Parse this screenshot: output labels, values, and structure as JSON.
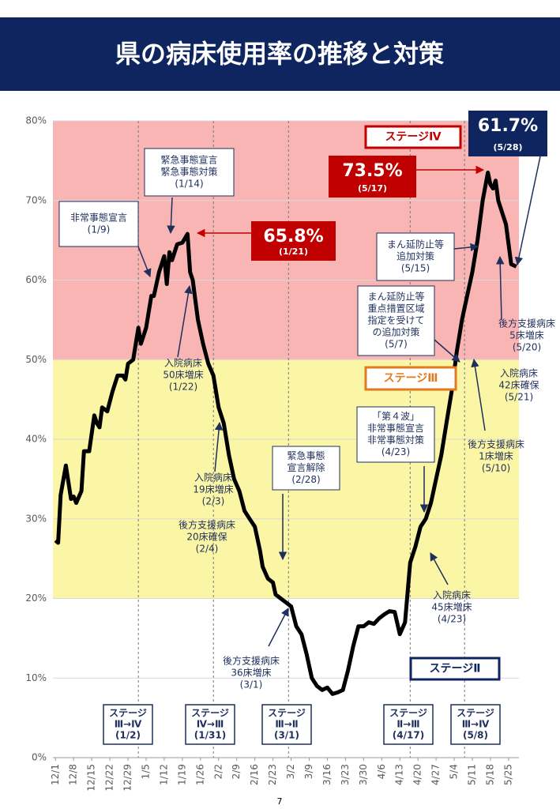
{
  "chart_data": {
    "type": "line",
    "title": "県の病床使用率の推移と対策",
    "xlim": [
      -1,
      179
    ],
    "xticks": [
      {
        "value": 0,
        "label": "12/1"
      },
      {
        "value": 7,
        "label": "12/8"
      },
      {
        "value": 14,
        "label": "12/15"
      },
      {
        "value": 21,
        "label": "12/22"
      },
      {
        "value": 28,
        "label": "12/29"
      },
      {
        "value": 35,
        "label": "1/5"
      },
      {
        "value": 42,
        "label": "1/12"
      },
      {
        "value": 49,
        "label": "1/19"
      },
      {
        "value": 56,
        "label": "1/26"
      },
      {
        "value": 63,
        "label": "2/2"
      },
      {
        "value": 70,
        "label": "2/9"
      },
      {
        "value": 77,
        "label": "2/16"
      },
      {
        "value": 84,
        "label": "2/23"
      },
      {
        "value": 91,
        "label": "3/2"
      },
      {
        "value": 98,
        "label": "3/9"
      },
      {
        "value": 105,
        "label": "3/16"
      },
      {
        "value": 112,
        "label": "3/23"
      },
      {
        "value": 119,
        "label": "3/30"
      },
      {
        "value": 126,
        "label": "4/6"
      },
      {
        "value": 133,
        "label": "4/13"
      },
      {
        "value": 140,
        "label": "4/20"
      },
      {
        "value": 147,
        "label": "4/27"
      },
      {
        "value": 154,
        "label": "5/4"
      },
      {
        "value": 161,
        "label": "5/11"
      },
      {
        "value": 168,
        "label": "5/18"
      },
      {
        "value": 175,
        "label": "5/25"
      }
    ],
    "ylim": [
      0,
      80
    ],
    "yticks": [
      {
        "value": 0,
        "label": "0%"
      },
      {
        "value": 10,
        "label": "10%"
      },
      {
        "value": 20,
        "label": "20%"
      },
      {
        "value": 30,
        "label": "30%"
      },
      {
        "value": 40,
        "label": "40%"
      },
      {
        "value": 50,
        "label": "50%"
      },
      {
        "value": 60,
        "label": "60%"
      },
      {
        "value": 70,
        "label": "70%"
      },
      {
        "value": 80,
        "label": "80%"
      }
    ],
    "grid": true,
    "bands": [
      {
        "from": 50,
        "to": 80,
        "color": "#f9b4b4"
      },
      {
        "from": 20,
        "to": 50,
        "color": "#fbf6a6"
      }
    ],
    "vlines": [
      32,
      61,
      90,
      137,
      158
    ],
    "color": "#000000",
    "x": [
      0,
      1,
      2,
      4,
      6,
      7,
      8,
      10,
      11,
      13,
      15,
      16,
      17,
      18,
      20,
      22,
      24,
      26,
      27,
      28,
      30,
      32,
      33,
      35,
      37,
      38,
      40,
      42,
      43,
      44,
      45,
      47,
      49,
      51,
      52,
      53,
      55,
      57,
      59,
      61,
      63,
      65,
      67,
      69,
      71,
      73,
      75,
      77,
      79,
      80,
      82,
      84,
      85,
      87,
      89,
      91,
      93,
      95,
      97,
      99,
      101,
      103,
      105,
      107,
      109,
      111,
      113,
      115,
      117,
      119,
      121,
      123,
      125,
      127,
      129,
      131,
      133,
      135,
      137,
      139,
      141,
      143,
      145,
      147,
      149,
      151,
      153,
      155,
      157,
      159,
      161,
      163,
      165,
      167,
      168,
      169,
      170,
      171,
      173,
      174,
      176,
      178
    ],
    "values": [
      27.3,
      27,
      33,
      36.7,
      32.5,
      32.8,
      32,
      33.5,
      38.5,
      38.5,
      43,
      42,
      41.5,
      44,
      43.5,
      46,
      48,
      48,
      47.5,
      49.5,
      50,
      54,
      52,
      54,
      58,
      58,
      61,
      63,
      59.5,
      63.5,
      62.5,
      64.5,
      64.7,
      65.8,
      61,
      60,
      55,
      52,
      49.5,
      48,
      44,
      42,
      38,
      35,
      33.5,
      31,
      30,
      29,
      26,
      24,
      22.5,
      22,
      20.5,
      20,
      19.5,
      19,
      16.5,
      15.5,
      13,
      10,
      9,
      8.5,
      8.8,
      8,
      8.2,
      8.5,
      11,
      14,
      16.5,
      16.5,
      17,
      16.8,
      17.5,
      18,
      18.4,
      18.3,
      15.5,
      17,
      24.5,
      26.5,
      29,
      30,
      32,
      35,
      38,
      42,
      46,
      51,
      55,
      58,
      61,
      65,
      70,
      73.5,
      72,
      71.5,
      72.5,
      70,
      68,
      67,
      62,
      61.7
    ],
    "stage_labels": [
      "ステージⅣ",
      "ステージⅢ",
      "ステージⅡ"
    ],
    "highlights": [
      {
        "value": "65.8%",
        "date": "(1/21)"
      },
      {
        "value": "73.5%",
        "date": "(5/17)"
      },
      {
        "value": "61.7%",
        "date": "(5/28)"
      }
    ],
    "annotations": [
      {
        "lines": [
          "非常事態宣言",
          "(1/9)"
        ]
      },
      {
        "lines": [
          "緊急事態宣言",
          "緊急事態対策",
          "(1/14)"
        ]
      },
      {
        "lines": [
          "入院病床",
          "50床増床",
          "(1/22)"
        ]
      },
      {
        "lines": [
          "入院病床",
          "19床増床",
          "(2/3)"
        ]
      },
      {
        "lines": [
          "後方支援病床",
          "20床確保",
          "(2/4)"
        ]
      },
      {
        "lines": [
          "緊急事態",
          "宣言解除",
          "(2/28)"
        ]
      },
      {
        "lines": [
          "後方支援病床",
          "36床増床",
          "(3/1)"
        ]
      },
      {
        "lines": [
          "「第４波」",
          "非常事態宣言",
          "非常事態対策",
          "(4/23)"
        ]
      },
      {
        "lines": [
          "入院病床",
          "45床増床",
          "(4/23)"
        ]
      },
      {
        "lines": [
          "まん延防止等",
          "重点措置区域",
          "指定を受けて",
          "の追加対策",
          "(5/7)"
        ]
      },
      {
        "lines": [
          "まん延防止等",
          "追加対策",
          "(5/15)"
        ]
      },
      {
        "lines": [
          "後方支援病床",
          "1床増床",
          "(5/10)"
        ]
      },
      {
        "lines": [
          "後方支援病床",
          "5床増床",
          "(5/20)"
        ]
      },
      {
        "lines": [
          "入院病床",
          "42床確保",
          "(5/21)"
        ]
      }
    ],
    "stage_changes": [
      {
        "lines": [
          "ステージ",
          "Ⅲ→Ⅳ",
          "(1/2)"
        ]
      },
      {
        "lines": [
          "ステージ",
          "Ⅳ→Ⅲ",
          "(1/31)"
        ]
      },
      {
        "lines": [
          "ステージ",
          "Ⅲ→Ⅱ",
          "(3/1)"
        ]
      },
      {
        "lines": [
          "ステージ",
          "Ⅱ→Ⅲ",
          "(4/17)"
        ]
      },
      {
        "lines": [
          "ステージ",
          "Ⅲ→Ⅳ",
          "(5/8)"
        ]
      }
    ]
  },
  "page_number": "7"
}
